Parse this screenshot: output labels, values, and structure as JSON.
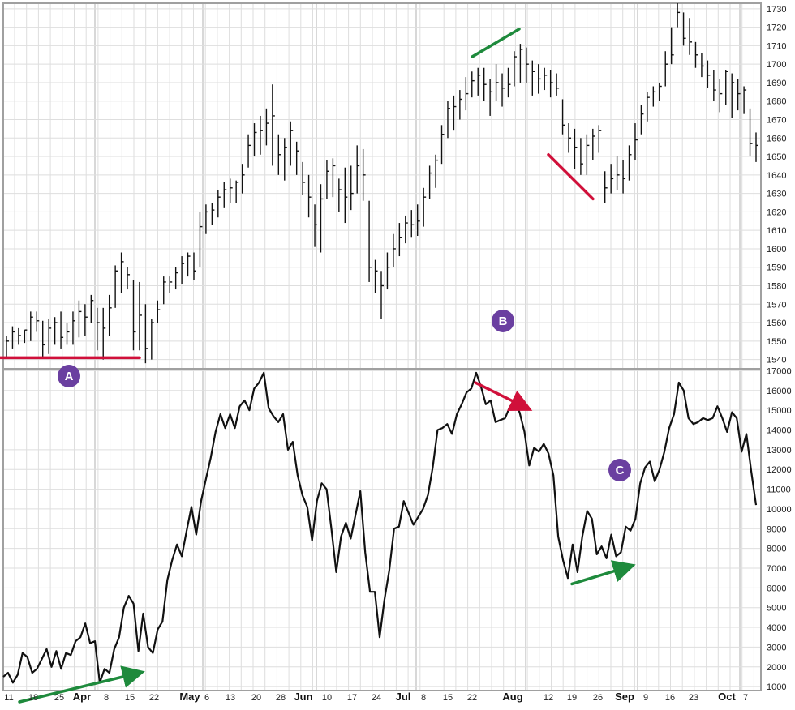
{
  "chart_data": [
    {
      "type": "ohlc",
      "panel": "top",
      "y_axis_side": "right",
      "ylim": [
        1535,
        1733
      ],
      "y_ticks": [
        1540,
        1550,
        1560,
        1570,
        1580,
        1590,
        1600,
        1610,
        1620,
        1630,
        1640,
        1650,
        1660,
        1670,
        1680,
        1690,
        1700,
        1710,
        1720,
        1730
      ],
      "grid": true,
      "bars": [
        [
          1553,
          1541,
          1550
        ],
        [
          1558,
          1546,
          1555
        ],
        [
          1557,
          1548,
          1553
        ],
        [
          1556,
          1549,
          1556
        ],
        [
          1566,
          1550,
          1563
        ],
        [
          1566,
          1555,
          1561
        ],
        [
          1561,
          1541,
          1548
        ],
        [
          1562,
          1543,
          1557
        ],
        [
          1563,
          1548,
          1560
        ],
        [
          1566,
          1546,
          1552
        ],
        [
          1560,
          1548,
          1555
        ],
        [
          1566,
          1548,
          1561
        ],
        [
          1572,
          1552,
          1566
        ],
        [
          1570,
          1553,
          1563
        ],
        [
          1575,
          1560,
          1572
        ],
        [
          1568,
          1545,
          1560
        ],
        [
          1568,
          1540,
          1557
        ],
        [
          1575,
          1553,
          1568
        ],
        [
          1591,
          1568,
          1588
        ],
        [
          1598,
          1576,
          1593
        ],
        [
          1590,
          1578,
          1586
        ],
        [
          1583,
          1545,
          1555
        ],
        [
          1582,
          1545,
          1564
        ],
        [
          1570,
          1538,
          1546
        ],
        [
          1562,
          1540,
          1560
        ],
        [
          1572,
          1560,
          1567
        ],
        [
          1585,
          1570,
          1582
        ],
        [
          1585,
          1576,
          1582
        ],
        [
          1590,
          1578,
          1587
        ],
        [
          1596,
          1581,
          1592
        ],
        [
          1598,
          1585,
          1596
        ],
        [
          1598,
          1583,
          1588
        ],
        [
          1620,
          1590,
          1612
        ],
        [
          1624,
          1608,
          1620
        ],
        [
          1625,
          1613,
          1621
        ],
        [
          1632,
          1617,
          1628
        ],
        [
          1636,
          1622,
          1632
        ],
        [
          1638,
          1625,
          1633
        ],
        [
          1637,
          1625,
          1636
        ],
        [
          1646,
          1630,
          1640
        ],
        [
          1662,
          1644,
          1656
        ],
        [
          1668,
          1650,
          1663
        ],
        [
          1672,
          1651,
          1664
        ],
        [
          1676,
          1656,
          1668
        ],
        [
          1689,
          1645,
          1672
        ],
        [
          1662,
          1640,
          1651
        ],
        [
          1660,
          1637,
          1655
        ],
        [
          1669,
          1645,
          1664
        ],
        [
          1658,
          1640,
          1653
        ],
        [
          1647,
          1629,
          1636
        ],
        [
          1640,
          1617,
          1628
        ],
        [
          1624,
          1601,
          1613
        ],
        [
          1635,
          1598,
          1627
        ],
        [
          1648,
          1627,
          1642
        ],
        [
          1649,
          1628,
          1645
        ],
        [
          1638,
          1620,
          1632
        ],
        [
          1644,
          1614,
          1628
        ],
        [
          1645,
          1621,
          1630
        ],
        [
          1656,
          1630,
          1645
        ],
        [
          1654,
          1626,
          1640
        ],
        [
          1626,
          1582,
          1590
        ],
        [
          1594,
          1576,
          1588
        ],
        [
          1588,
          1562,
          1580
        ],
        [
          1598,
          1578,
          1590
        ],
        [
          1608,
          1590,
          1600
        ],
        [
          1614,
          1596,
          1606
        ],
        [
          1618,
          1603,
          1614
        ],
        [
          1621,
          1606,
          1613
        ],
        [
          1624,
          1607,
          1615
        ],
        [
          1633,
          1612,
          1628
        ],
        [
          1645,
          1627,
          1641
        ],
        [
          1651,
          1633,
          1648
        ],
        [
          1667,
          1646,
          1662
        ],
        [
          1680,
          1660,
          1676
        ],
        [
          1683,
          1664,
          1677
        ],
        [
          1686,
          1670,
          1681
        ],
        [
          1693,
          1675,
          1684
        ],
        [
          1696,
          1682,
          1691
        ],
        [
          1698,
          1683,
          1694
        ],
        [
          1698,
          1680,
          1689
        ],
        [
          1692,
          1672,
          1685
        ],
        [
          1700,
          1680,
          1690
        ],
        [
          1695,
          1677,
          1687
        ],
        [
          1698,
          1682,
          1689
        ],
        [
          1707,
          1688,
          1704
        ],
        [
          1711,
          1690,
          1708
        ],
        [
          1709,
          1690,
          1700
        ],
        [
          1702,
          1683,
          1696
        ],
        [
          1700,
          1684,
          1692
        ],
        [
          1698,
          1686,
          1694
        ],
        [
          1697,
          1682,
          1690
        ],
        [
          1695,
          1683,
          1687
        ],
        [
          1681,
          1662,
          1667
        ],
        [
          1668,
          1652,
          1660
        ],
        [
          1665,
          1643,
          1655
        ],
        [
          1660,
          1640,
          1646
        ],
        [
          1662,
          1640,
          1656
        ],
        [
          1665,
          1648,
          1661
        ],
        [
          1667,
          1652,
          1664
        ],
        [
          1642,
          1625,
          1633
        ],
        [
          1646,
          1630,
          1638
        ],
        [
          1650,
          1632,
          1640
        ],
        [
          1648,
          1630,
          1638
        ],
        [
          1656,
          1637,
          1651
        ],
        [
          1668,
          1648,
          1659
        ],
        [
          1678,
          1662,
          1673
        ],
        [
          1685,
          1669,
          1682
        ],
        [
          1688,
          1677,
          1685
        ],
        [
          1690,
          1680,
          1688
        ],
        [
          1707,
          1688,
          1700
        ],
        [
          1720,
          1700,
          1705
        ],
        [
          1733,
          1720,
          1728
        ],
        [
          1728,
          1710,
          1714
        ],
        [
          1725,
          1705,
          1712
        ],
        [
          1712,
          1698,
          1705
        ],
        [
          1706,
          1693,
          1699
        ],
        [
          1702,
          1687,
          1694
        ],
        [
          1697,
          1680,
          1686
        ],
        [
          1692,
          1674,
          1684
        ],
        [
          1697,
          1678,
          1696
        ],
        [
          1695,
          1671,
          1690
        ],
        [
          1692,
          1675,
          1684
        ],
        [
          1688,
          1673,
          1686
        ],
        [
          1676,
          1650,
          1657
        ],
        [
          1663,
          1647,
          1656
        ]
      ]
    },
    {
      "type": "line",
      "panel": "bottom",
      "y_axis_side": "right",
      "ylim": [
        800,
        17100
      ],
      "y_ticks": [
        1000,
        2000,
        3000,
        4000,
        5000,
        6000,
        7000,
        8000,
        9000,
        10000,
        11000,
        12000,
        13000,
        14000,
        15000,
        16000,
        17000
      ],
      "grid": true,
      "y": [
        1500,
        1700,
        1200,
        1600,
        2700,
        2500,
        1700,
        1900,
        2400,
        2900,
        2000,
        2800,
        1900,
        2700,
        2600,
        3300,
        3500,
        4200,
        3200,
        3300,
        1200,
        1900,
        1700,
        2900,
        3500,
        5000,
        5600,
        5200,
        2800,
        4700,
        3000,
        2700,
        3900,
        4300,
        6400,
        7400,
        8200,
        7600,
        8900,
        10100,
        8700,
        10400,
        11500,
        12600,
        13900,
        14800,
        14100,
        14800,
        14100,
        15200,
        15500,
        15000,
        16100,
        16400,
        16900,
        15100,
        14700,
        14400,
        14800,
        13000,
        13400,
        11700,
        10700,
        10100,
        8400,
        10400,
        11300,
        11000,
        9000,
        6800,
        8600,
        9300,
        8500,
        9700,
        10900,
        7800,
        5800,
        5800,
        3500,
        5400,
        6900,
        9000,
        9100,
        10400,
        9800,
        9200,
        9600,
        10000,
        10700,
        12100,
        14000,
        14100,
        14300,
        13800,
        14800,
        15300,
        15900,
        16100,
        16900,
        16200,
        15300,
        15500,
        14400,
        14500,
        14600,
        15200,
        15300,
        14900,
        13900,
        12200,
        13100,
        12900,
        13300,
        12800,
        11700,
        8600,
        7400,
        6500,
        8200,
        6800,
        8600,
        9900,
        9500,
        7700,
        8100,
        7500,
        8700,
        7600,
        7800,
        9100,
        8900,
        9500,
        11300,
        12100,
        12400,
        11400,
        12000,
        12900,
        14100,
        14800,
        16400,
        16000,
        14600,
        14300,
        14400,
        14600,
        14500,
        14600,
        15200,
        14600,
        13900,
        14900,
        14600,
        12900,
        13800,
        11900,
        10200
      ]
    },
    {
      "type": "annotations",
      "x_tick_labels": [
        {
          "text": "11",
          "major": false
        },
        {
          "text": "18",
          "major": false
        },
        {
          "text": "25",
          "major": false
        },
        {
          "text": "Apr",
          "major": true
        },
        {
          "text": "8",
          "major": false
        },
        {
          "text": "15",
          "major": false
        },
        {
          "text": "22",
          "major": false
        },
        {
          "text": "May",
          "major": true
        },
        {
          "text": "6",
          "major": false
        },
        {
          "text": "13",
          "major": false
        },
        {
          "text": "20",
          "major": false
        },
        {
          "text": "28",
          "major": false
        },
        {
          "text": "Jun",
          "major": true
        },
        {
          "text": "10",
          "major": false
        },
        {
          "text": "17",
          "major": false
        },
        {
          "text": "24",
          "major": false
        },
        {
          "text": "Jul",
          "major": true
        },
        {
          "text": "8",
          "major": false
        },
        {
          "text": "15",
          "major": false
        },
        {
          "text": "22",
          "major": false
        },
        {
          "text": "Aug",
          "major": true
        },
        {
          "text": "12",
          "major": false
        },
        {
          "text": "19",
          "major": false
        },
        {
          "text": "26",
          "major": false
        },
        {
          "text": "Sep",
          "major": true
        },
        {
          "text": "9",
          "major": false
        },
        {
          "text": "16",
          "major": false
        },
        {
          "text": "23",
          "major": false
        },
        {
          "text": "Oct",
          "major": true
        },
        {
          "text": "7",
          "major": false
        }
      ],
      "markers": [
        {
          "label": "A",
          "color": "#6a3fa0"
        },
        {
          "label": "B",
          "color": "#6a3fa0"
        },
        {
          "label": "C",
          "color": "#6a3fa0"
        }
      ],
      "trendlines": [
        {
          "panel": "top",
          "color": "#d0103a",
          "from": [
            0,
            1541
          ],
          "to": [
            172,
            1541
          ]
        },
        {
          "panel": "top",
          "color": "#1e8a3c",
          "from": [
            582,
            1704
          ],
          "to": [
            640,
            1719
          ]
        },
        {
          "panel": "top",
          "color": "#d0103a",
          "from": [
            676,
            1651
          ],
          "to": [
            731,
            1627
          ]
        },
        {
          "panel": "bottom",
          "color": "#1e8a3c",
          "from": [
            24,
            0
          ],
          "to": [
            172,
            600
          ],
          "arrow": true
        },
        {
          "panel": "bottom",
          "color": "#d0103a",
          "from": [
            586,
            16400
          ],
          "to": [
            650,
            15100
          ],
          "arrow": true
        },
        {
          "panel": "bottom",
          "color": "#1e8a3c",
          "from": [
            705,
            6200
          ],
          "to": [
            777,
            7100
          ],
          "arrow": true
        }
      ],
      "colors": {
        "price": "#111111",
        "grid": "#dedede",
        "frame": "#a0a0a0",
        "red": "#d0103a",
        "green": "#1e8a3c",
        "marker": "#6a3fa0"
      }
    }
  ]
}
